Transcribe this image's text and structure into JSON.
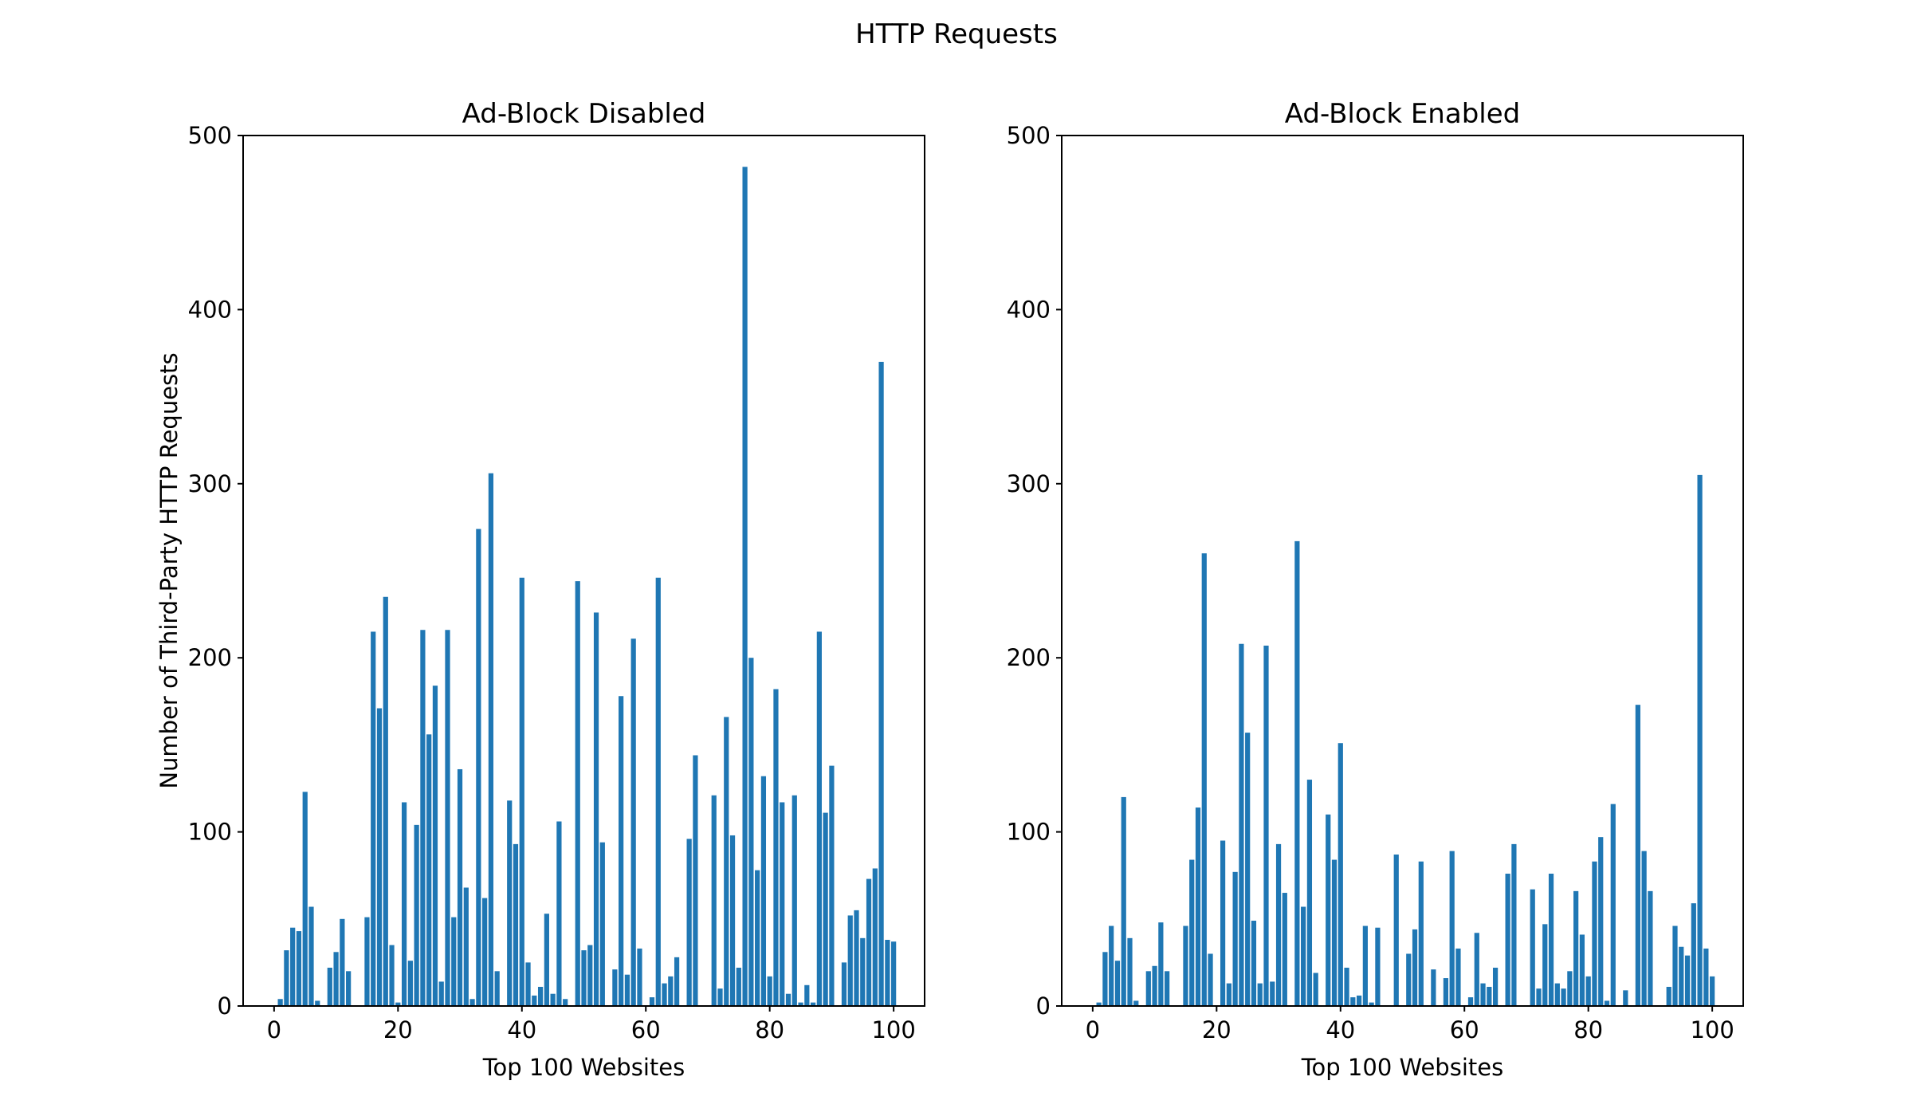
{
  "figure": {
    "title": "HTTP Requests"
  },
  "colors": {
    "bar": "#1f77b4",
    "axes": "#000000",
    "background": "#ffffff"
  },
  "chart_data": [
    {
      "type": "bar",
      "title": "Ad-Block Disabled",
      "xlabel": "Top 100 Websites",
      "ylabel": "Number of Third-Party HTTP Requests",
      "xlim": [
        -5,
        105
      ],
      "ylim": [
        0,
        500
      ],
      "xticks": [
        0,
        20,
        40,
        60,
        80,
        100
      ],
      "yticks": [
        0,
        100,
        200,
        300,
        400,
        500
      ],
      "grid": false,
      "x": [
        1,
        2,
        3,
        4,
        5,
        6,
        7,
        8,
        9,
        10,
        11,
        12,
        13,
        14,
        15,
        16,
        17,
        18,
        19,
        20,
        21,
        22,
        23,
        24,
        25,
        26,
        27,
        28,
        29,
        30,
        31,
        32,
        33,
        34,
        35,
        36,
        37,
        38,
        39,
        40,
        41,
        42,
        43,
        44,
        45,
        46,
        47,
        48,
        49,
        50,
        51,
        52,
        53,
        54,
        55,
        56,
        57,
        58,
        59,
        60,
        61,
        62,
        63,
        64,
        65,
        66,
        67,
        68,
        69,
        70,
        71,
        72,
        73,
        74,
        75,
        76,
        77,
        78,
        79,
        80,
        81,
        82,
        83,
        84,
        85,
        86,
        87,
        88,
        89,
        90,
        91,
        92,
        93,
        94,
        95,
        96,
        97,
        98,
        99,
        100
      ],
      "values": [
        4,
        32,
        45,
        43,
        123,
        57,
        3,
        0,
        22,
        31,
        50,
        20,
        0,
        0,
        51,
        215,
        171,
        235,
        35,
        2,
        117,
        26,
        104,
        216,
        156,
        184,
        14,
        216,
        51,
        136,
        68,
        4,
        274,
        62,
        306,
        20,
        0,
        118,
        93,
        246,
        25,
        6,
        11,
        53,
        7,
        106,
        4,
        0,
        244,
        32,
        35,
        226,
        94,
        0,
        21,
        178,
        18,
        211,
        33,
        0,
        5,
        246,
        13,
        17,
        28,
        0,
        96,
        144,
        0,
        0,
        121,
        10,
        166,
        98,
        22,
        482,
        200,
        78,
        132,
        17,
        182,
        117,
        7,
        121,
        2,
        12,
        2,
        215,
        111,
        138,
        0,
        25,
        52,
        55,
        39,
        73,
        79,
        370,
        38,
        37
      ]
    },
    {
      "type": "bar",
      "title": "Ad-Block Enabled",
      "xlabel": "Top 100 Websites",
      "ylabel": "",
      "xlim": [
        -5,
        105
      ],
      "ylim": [
        0,
        500
      ],
      "xticks": [
        0,
        20,
        40,
        60,
        80,
        100
      ],
      "yticks": [
        0,
        100,
        200,
        300,
        400,
        500
      ],
      "grid": false,
      "x": [
        1,
        2,
        3,
        4,
        5,
        6,
        7,
        8,
        9,
        10,
        11,
        12,
        13,
        14,
        15,
        16,
        17,
        18,
        19,
        20,
        21,
        22,
        23,
        24,
        25,
        26,
        27,
        28,
        29,
        30,
        31,
        32,
        33,
        34,
        35,
        36,
        37,
        38,
        39,
        40,
        41,
        42,
        43,
        44,
        45,
        46,
        47,
        48,
        49,
        50,
        51,
        52,
        53,
        54,
        55,
        56,
        57,
        58,
        59,
        60,
        61,
        62,
        63,
        64,
        65,
        66,
        67,
        68,
        69,
        70,
        71,
        72,
        73,
        74,
        75,
        76,
        77,
        78,
        79,
        80,
        81,
        82,
        83,
        84,
        85,
        86,
        87,
        88,
        89,
        90,
        91,
        92,
        93,
        94,
        95,
        96,
        97,
        98,
        99,
        100
      ],
      "values": [
        2,
        31,
        46,
        26,
        120,
        39,
        3,
        0,
        20,
        23,
        48,
        20,
        0,
        0,
        46,
        84,
        114,
        260,
        30,
        0,
        95,
        13,
        77,
        208,
        157,
        49,
        13,
        207,
        14,
        93,
        65,
        0,
        267,
        57,
        130,
        19,
        0,
        110,
        84,
        151,
        22,
        5,
        6,
        46,
        2,
        45,
        0,
        0,
        87,
        0,
        30,
        44,
        83,
        0,
        21,
        0,
        16,
        89,
        33,
        0,
        5,
        42,
        13,
        11,
        22,
        0,
        76,
        93,
        0,
        0,
        67,
        10,
        47,
        76,
        13,
        10,
        20,
        66,
        41,
        17,
        83,
        97,
        3,
        116,
        0,
        9,
        0,
        173,
        89,
        66,
        0,
        0,
        11,
        46,
        34,
        29,
        59,
        305,
        33,
        17
      ]
    }
  ]
}
